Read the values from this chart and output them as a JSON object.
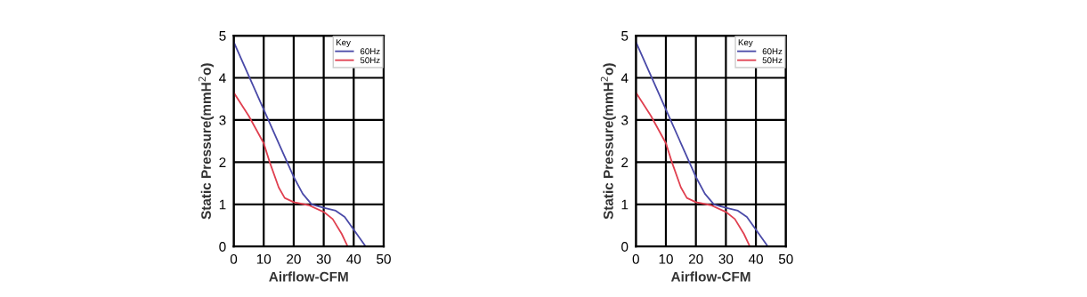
{
  "chart_data": [
    {
      "type": "line",
      "xlabel": "Airflow-CFM",
      "ylabel": "Static Pressure(mmH$^{2}$o)",
      "legend_title": "Key",
      "legend": "top right",
      "grid": true,
      "marker": "none",
      "line_style": "solid",
      "xlim": [
        0,
        50
      ],
      "xticks": [
        0,
        10,
        20,
        30,
        40,
        50
      ],
      "ylim": [
        0,
        5
      ],
      "yticks": [
        0,
        1,
        2,
        3,
        4,
        5
      ],
      "series": [
        {
          "name": "60Hz",
          "color": "#4a4aa8",
          "x": [
            0,
            5,
            10,
            15,
            20,
            23,
            26,
            30,
            34,
            37,
            40,
            44
          ],
          "values": [
            4.85,
            4.05,
            3.25,
            2.45,
            1.65,
            1.25,
            1.0,
            0.92,
            0.85,
            0.7,
            0.4,
            0
          ]
        },
        {
          "name": "50Hz",
          "color": "#e04050",
          "x": [
            0,
            5,
            10,
            12,
            15,
            17,
            20,
            25,
            30,
            33,
            36,
            38
          ],
          "values": [
            3.65,
            3.1,
            2.45,
            2.0,
            1.4,
            1.15,
            1.05,
            0.98,
            0.82,
            0.65,
            0.3,
            0
          ]
        }
      ]
    },
    {
      "type": "line",
      "xlabel": "Airflow-CFM",
      "ylabel": "Static Pressure(mmH$^{2}$o)",
      "legend_title": "Key",
      "legend": "top right",
      "grid": true,
      "marker": "none",
      "line_style": "solid",
      "xlim": [
        0,
        50
      ],
      "xticks": [
        0,
        10,
        20,
        30,
        40,
        50
      ],
      "ylim": [
        0,
        5
      ],
      "yticks": [
        0,
        1,
        2,
        3,
        4,
        5
      ],
      "series": [
        {
          "name": "60Hz",
          "color": "#4a4aa8",
          "x": [
            0,
            5,
            10,
            15,
            20,
            23,
            26,
            30,
            34,
            37,
            40,
            44
          ],
          "values": [
            4.85,
            4.05,
            3.25,
            2.45,
            1.65,
            1.25,
            1.0,
            0.92,
            0.85,
            0.7,
            0.4,
            0
          ]
        },
        {
          "name": "50Hz",
          "color": "#e04050",
          "x": [
            0,
            5,
            10,
            12,
            15,
            17,
            20,
            25,
            30,
            33,
            36,
            38
          ],
          "values": [
            3.65,
            3.1,
            2.45,
            2.0,
            1.4,
            1.15,
            1.05,
            0.98,
            0.82,
            0.65,
            0.3,
            0
          ]
        }
      ]
    }
  ]
}
